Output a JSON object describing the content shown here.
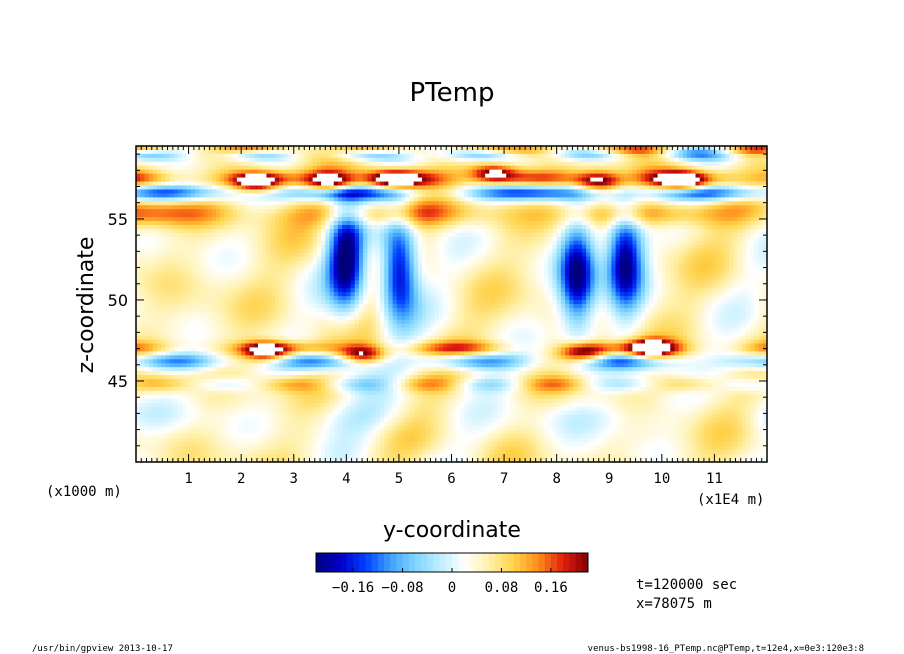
{
  "chart_data": {
    "type": "heatmap",
    "title": "PTemp",
    "xlabel": "y-coordinate",
    "ylabel": "z-coordinate",
    "x_unit_left": "(x1000 m)",
    "x_unit_right": "(x1E4 m)",
    "xlim": [
      0,
      12
    ],
    "ylim": [
      40,
      59.5
    ],
    "x_major_ticks": [
      1,
      2,
      3,
      4,
      5,
      6,
      7,
      8,
      9,
      10,
      11
    ],
    "y_major_ticks": [
      45,
      50,
      55
    ],
    "colorbar": {
      "range": [
        -0.22,
        0.22
      ],
      "n_levels": 44,
      "tick_values": [
        -0.16,
        -0.08,
        0,
        0.08,
        0.16
      ],
      "tick_labels": [
        "−0.16",
        "−0.08",
        "0",
        "0.08",
        "0.16"
      ],
      "colors": [
        "#00007f",
        "#0000c8",
        "#0040ff",
        "#3fa0ff",
        "#7fd4ff",
        "#bdeeff",
        "#ffffff",
        "#fff0a8",
        "#ffd24a",
        "#ff8c1a",
        "#e01e10",
        "#800000"
      ]
    },
    "info_time": "t=120000 sec",
    "info_x": "x=78075 m",
    "features": [
      {
        "y": 2.3,
        "z": 57.2,
        "value": 0.25
      },
      {
        "y": 3.7,
        "z": 57.3,
        "value": 0.25
      },
      {
        "y": 4.9,
        "z": 57.4,
        "value": 0.25
      },
      {
        "y": 6.8,
        "z": 57.8,
        "value": 0.25
      },
      {
        "y": 8.8,
        "z": 57.3,
        "value": 0.25
      },
      {
        "y": 10.4,
        "z": 57.3,
        "value": 0.25
      },
      {
        "y": 2.5,
        "z": 46.8,
        "value": 0.25
      },
      {
        "y": 4.3,
        "z": 46.6,
        "value": 0.25
      },
      {
        "y": 8.5,
        "z": 46.7,
        "value": 0.25
      },
      {
        "y": 9.8,
        "z": 47.0,
        "value": 0.25
      },
      {
        "y": 4.0,
        "z": 52.5,
        "value": -0.22
      },
      {
        "y": 5.0,
        "z": 52.0,
        "value": -0.22
      },
      {
        "y": 8.4,
        "z": 51.5,
        "value": -0.22
      },
      {
        "y": 9.3,
        "z": 52.5,
        "value": -0.22
      }
    ]
  },
  "footer": {
    "left": "/usr/bin/gpview  2013-10-17",
    "right": "venus-bs1998-16_PTemp.nc@PTemp,t=12e4,x=0e3:120e3:8"
  }
}
